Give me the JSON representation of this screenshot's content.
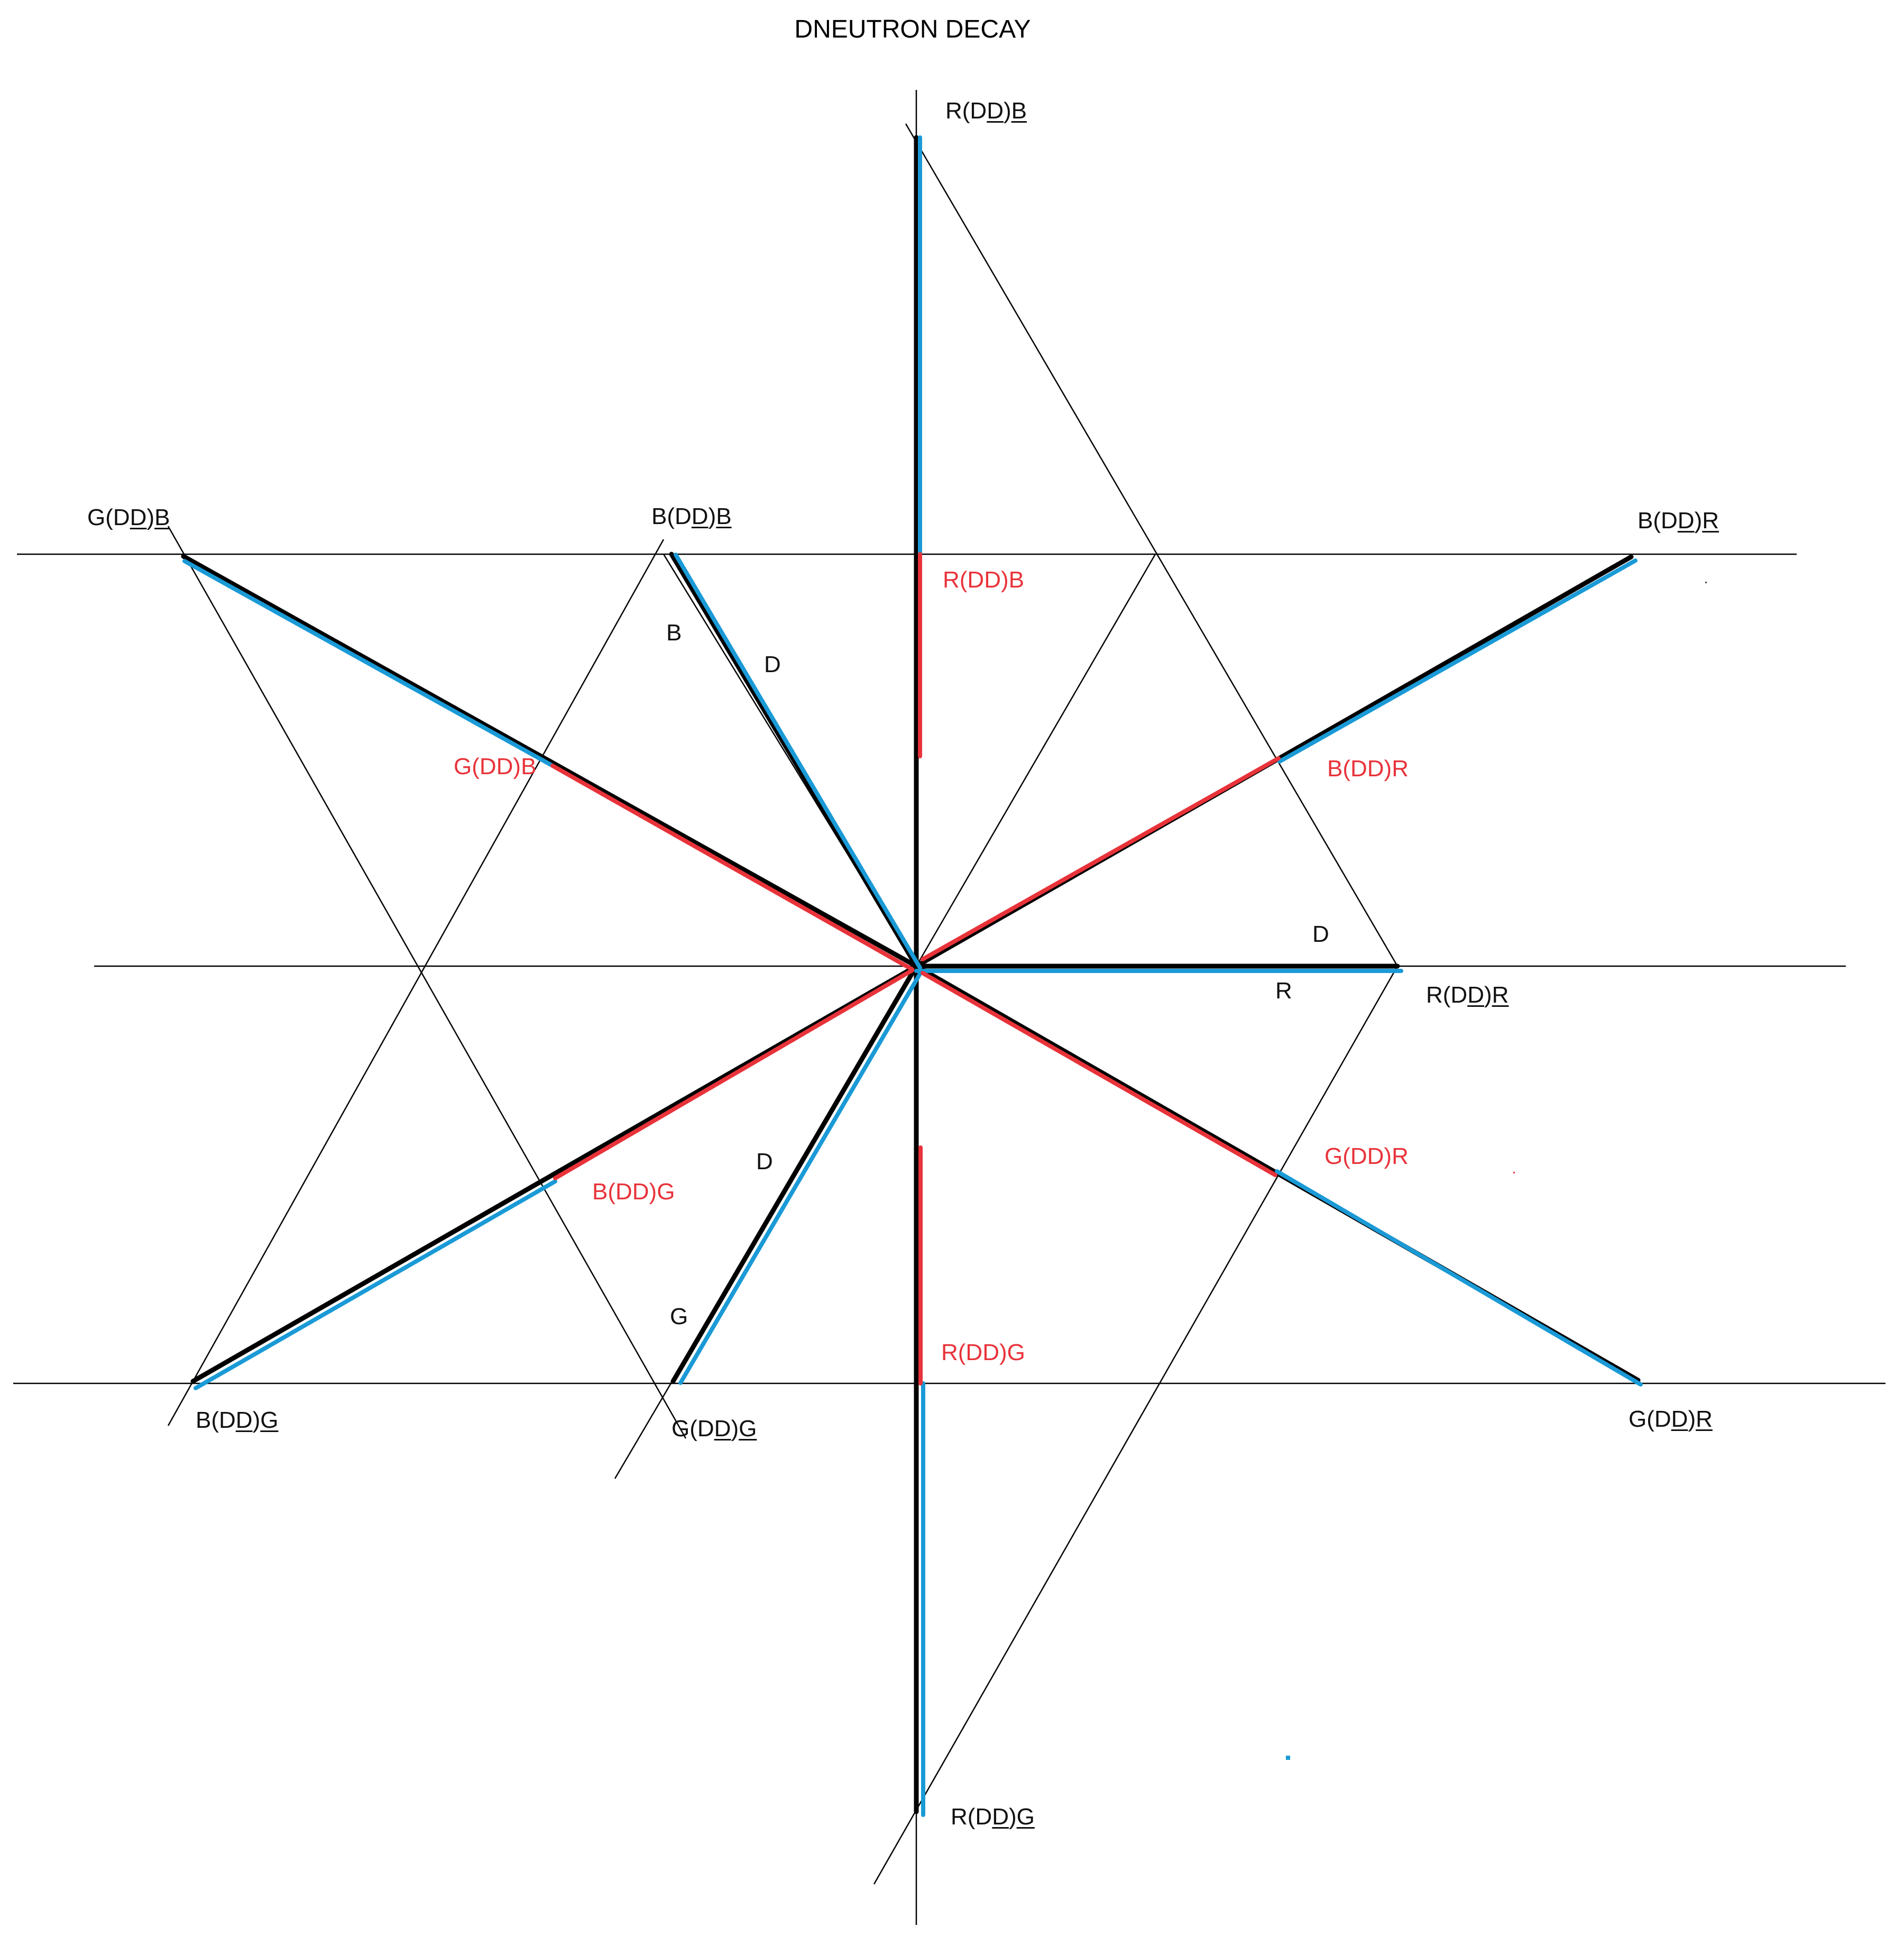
{
  "title": "DNEUTRON DECAY",
  "colors": {
    "blue": "#1a9ad6",
    "red": "#e8333a",
    "black": "#000000"
  },
  "outer_labels": {
    "top": {
      "pre": "R(D",
      "u1": "D",
      "mid": ")",
      "u2": "B"
    },
    "bottom": {
      "pre": "R(D",
      "u1": "D",
      "mid": ")",
      "u2": "G"
    },
    "right": {
      "pre": "R(D",
      "u1": "D",
      "mid": ")",
      "u2": "R"
    },
    "upper_right": {
      "pre": "B(D",
      "u1": "D",
      "mid": ")",
      "u2": "R"
    },
    "lower_right": {
      "pre": "G(D",
      "u1": "D",
      "mid": ")",
      "u2": "R"
    },
    "upper_left": {
      "pre": "G(D",
      "u1": "D",
      "mid": ")",
      "u2": "B"
    },
    "upper_mid_left": {
      "pre": "B(D",
      "u1": "D",
      "mid": ")",
      "u2": "B"
    },
    "lower_left": {
      "pre": "B(D",
      "u1": "D",
      "mid": ")",
      "u2": "G"
    },
    "lower_mid_left": {
      "pre": "G(D",
      "u1": "D",
      "mid": ")",
      "u2": "G"
    }
  },
  "inner_labels": {
    "top": "R(DD)B",
    "bottom": "R(DD)G",
    "upper_right": "B(DD)R",
    "lower_right": "G(DD)R",
    "upper_left": "G(DD)B",
    "lower_left": "B(DD)G"
  },
  "letters": {
    "b_upper": "B",
    "d_upper": "D",
    "d_right": "D",
    "r_right": "R",
    "d_lower": "D",
    "g_lower": "G"
  }
}
